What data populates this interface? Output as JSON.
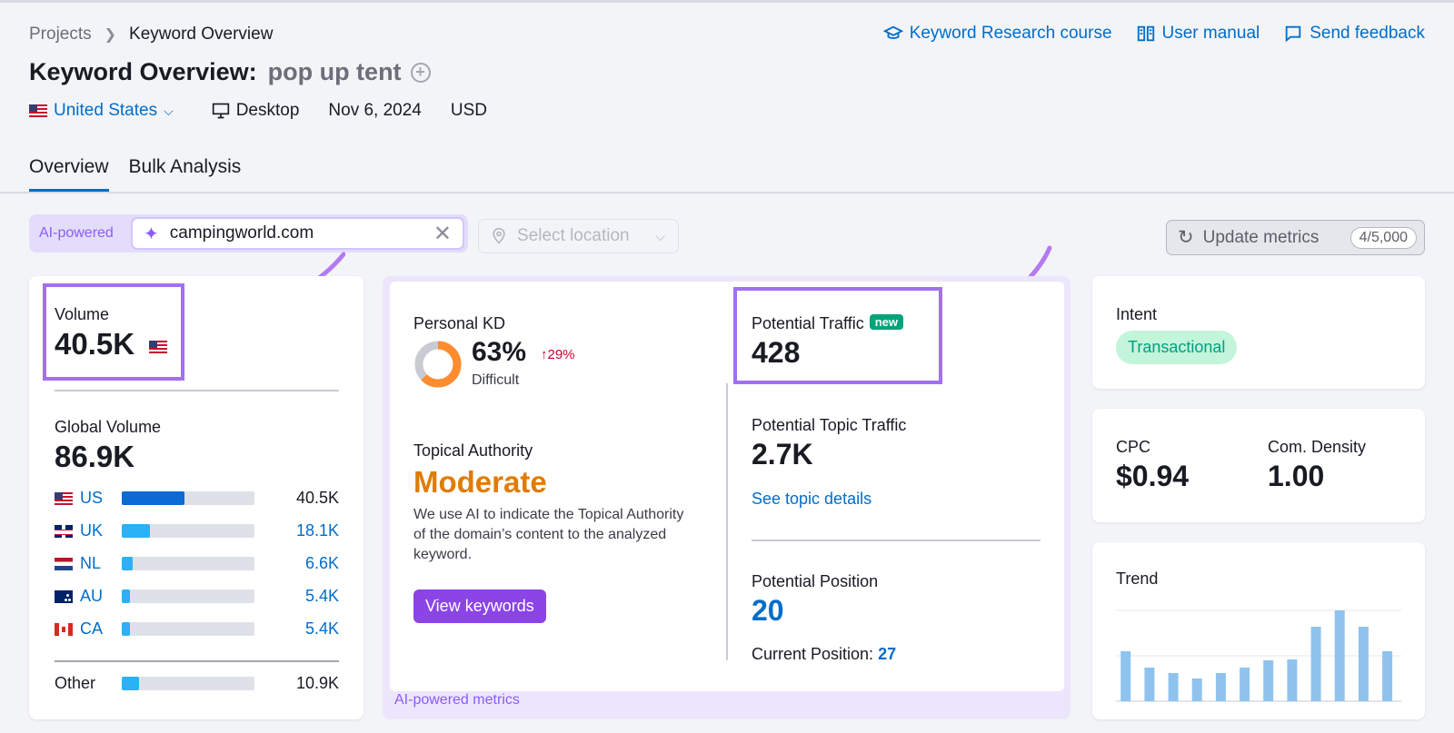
{
  "breadcrumb": {
    "parent": "Projects",
    "current": "Keyword Overview"
  },
  "top_links": [
    {
      "label": "Keyword Research course",
      "icon": "graduation-cap-icon"
    },
    {
      "label": "User manual",
      "icon": "book-icon"
    },
    {
      "label": "Send feedback",
      "icon": "chat-icon"
    }
  ],
  "title": {
    "prefix": "Keyword Overview:",
    "keyword": "pop up tent"
  },
  "meta": {
    "country": "United States",
    "device": "Desktop",
    "date": "Nov 6, 2024",
    "currency": "USD"
  },
  "tabs": [
    {
      "label": "Overview",
      "active": true
    },
    {
      "label": "Bulk Analysis",
      "active": false
    }
  ],
  "ai_bar": {
    "label": "AI-powered",
    "domain_value": "campingworld.com",
    "location_placeholder": "Select location"
  },
  "update": {
    "label": "Update metrics",
    "count": "4/5,000"
  },
  "volume": {
    "label": "Volume",
    "value": "40.5K",
    "global_label": "Global Volume",
    "global_value": "86.9K",
    "rows": [
      {
        "code": "US",
        "flag": "us",
        "value": "40.5K",
        "fill": 0.47,
        "color": "#0b6ad3"
      },
      {
        "code": "UK",
        "flag": "uk",
        "value": "18.1K",
        "fill": 0.21,
        "color": "#2bb1f5"
      },
      {
        "code": "NL",
        "flag": "nl",
        "value": "6.6K",
        "fill": 0.08,
        "color": "#2bb1f5"
      },
      {
        "code": "AU",
        "flag": "au",
        "value": "5.4K",
        "fill": 0.06,
        "color": "#2bb1f5"
      },
      {
        "code": "CA",
        "flag": "ca",
        "value": "5.4K",
        "fill": 0.06,
        "color": "#2bb1f5"
      }
    ],
    "other": {
      "label": "Other",
      "value": "10.9K",
      "fill": 0.13,
      "color": "#2bb1f5"
    }
  },
  "ai_metrics": {
    "personal_kd_label": "Personal KD",
    "personal_kd_value": "63%",
    "personal_kd_change": "29%",
    "personal_kd_text": "Difficult",
    "kd_fraction": 0.63,
    "topical_label": "Topical Authority",
    "topical_value": "Moderate",
    "topical_desc": "We use AI to indicate the Topical Authority of the domain’s content to the analyzed keyword.",
    "view_btn": "View keywords",
    "traffic_label": "Potential Traffic",
    "traffic_badge": "new",
    "traffic_value": "428",
    "topic_label": "Potential Topic Traffic",
    "topic_value": "2.7K",
    "topic_link": "See topic details",
    "position_label": "Potential Position",
    "position_value": "20",
    "current_label": "Current Position:",
    "current_value": "27",
    "footer": "AI-powered metrics"
  },
  "intent": {
    "label": "Intent",
    "value": "Transactional"
  },
  "cpc": {
    "label": "CPC",
    "value": "$0.94",
    "density_label": "Com. Density",
    "density_value": "1.00"
  },
  "trend": {
    "label": "Trend",
    "values": [
      0.55,
      0.37,
      0.31,
      0.25,
      0.31,
      0.37,
      0.45,
      0.46,
      0.82,
      1.0,
      0.82,
      0.55
    ],
    "color": "#8fc3ee"
  }
}
